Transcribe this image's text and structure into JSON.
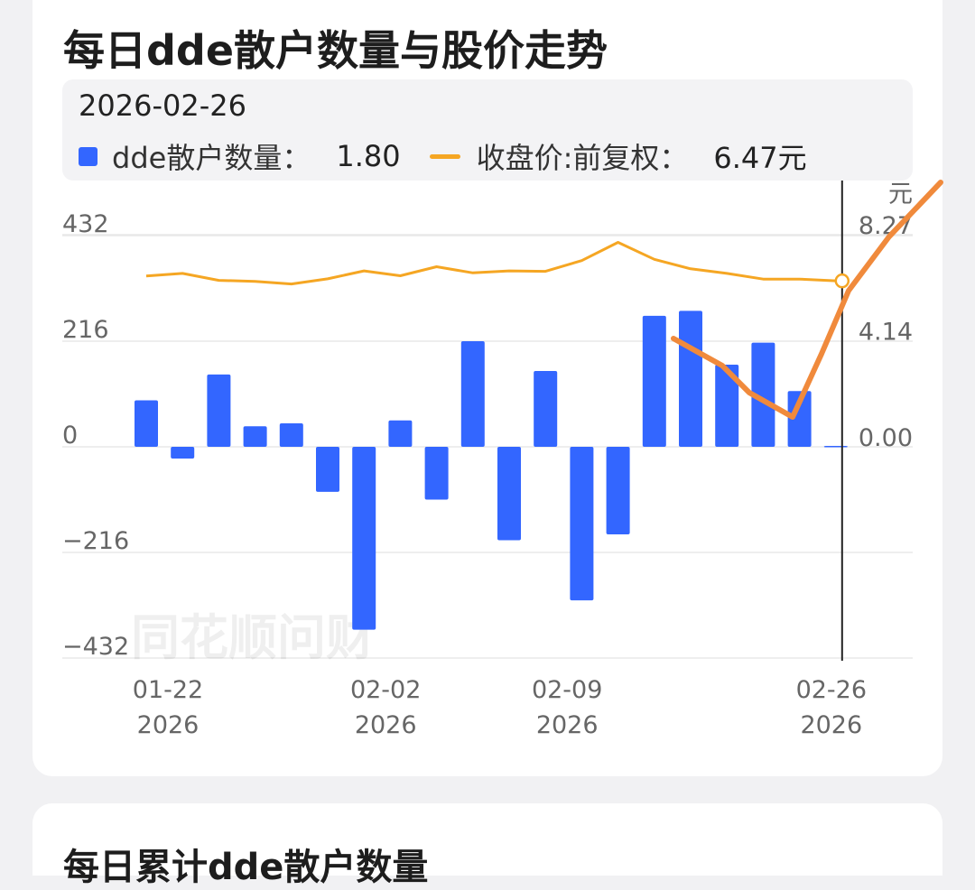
{
  "page": {
    "title": "每日dde散户数量与股价走势",
    "next_title": "每日累计dde散户数量",
    "watermark": "同花顺问财"
  },
  "tooltip": {
    "date": "2026-02-26",
    "series1_label": "dde散户数量：",
    "series1_value": "1.80",
    "series2_label": "收盘价:前复权：",
    "series2_value": "6.47元"
  },
  "colors": {
    "bar": "#3366ff",
    "price_line": "#f5a623",
    "annotation": "#f08a3c",
    "grid": "#e8e8e8",
    "crosshair": "#222222"
  },
  "chart_data": {
    "type": "bar",
    "title": "每日dde散户数量与股价走势",
    "y_left": {
      "ticks": [
        432,
        216,
        0,
        -216,
        -432
      ],
      "tick_labels": [
        "432",
        "216",
        "0",
        "−216",
        "−432"
      ],
      "range": [
        -432,
        432
      ]
    },
    "y_right": {
      "unit": "元",
      "ticks": [
        8.27,
        4.14,
        0.0
      ],
      "tick_labels": [
        "8.27",
        "4.14",
        "0.00"
      ],
      "range": [
        -8.27,
        8.27
      ]
    },
    "x_ticks": [
      {
        "index": 0,
        "date": "01-22",
        "year": "2026"
      },
      {
        "index": 6,
        "date": "02-02",
        "year": "2026"
      },
      {
        "index": 11,
        "date": "02-09",
        "year": "2026"
      },
      {
        "index": 19,
        "date": "02-26",
        "year": "2026"
      }
    ],
    "series": [
      {
        "name": "dde散户数量",
        "type": "bar",
        "values": [
          95,
          -24,
          148,
          42,
          48,
          -92,
          -374,
          54,
          -108,
          216,
          -191,
          155,
          -314,
          -179,
          268,
          278,
          168,
          213,
          114,
          1.8
        ]
      },
      {
        "name": "收盘价:前复权",
        "type": "line",
        "values": [
          6.66,
          6.76,
          6.49,
          6.45,
          6.35,
          6.55,
          6.86,
          6.67,
          7.02,
          6.78,
          6.86,
          6.84,
          7.26,
          7.97,
          7.31,
          6.94,
          6.76,
          6.54,
          6.54,
          6.47
        ]
      }
    ],
    "crosshair_index": 19,
    "hand_drawn_annotation": true
  }
}
